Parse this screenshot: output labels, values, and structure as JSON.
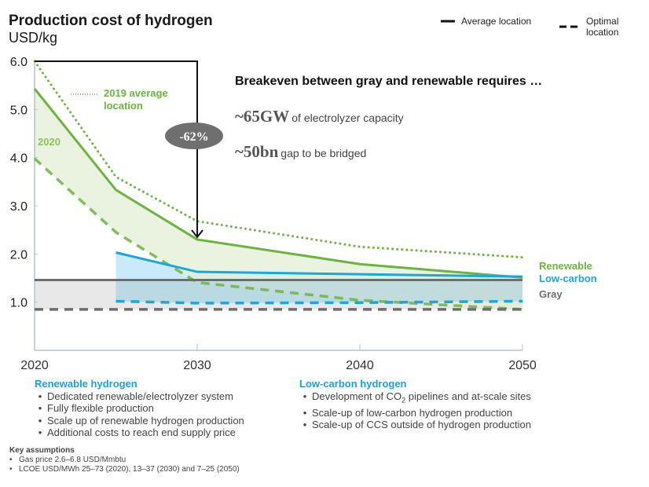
{
  "header": {
    "title": "Production cost of hydrogen",
    "unit": "USD/kg"
  },
  "legend": {
    "average": "Average location",
    "optimal": "Optimal location"
  },
  "annotation": {
    "breakeven_title": "Breakeven between gray and renewable requires …",
    "stat1_value": "~65GW",
    "stat1_text": "of electrolyzer capacity",
    "stat2_value": "~50bn",
    "stat2_text": "gap to be bridged",
    "reduction_badge": "-62%",
    "label_2019": "2019 average location",
    "label_2019_line1": "2019 average",
    "label_2019_line2": "location",
    "label_2020": "2020"
  },
  "series_labels": {
    "renewable": "Renewable",
    "low_carbon": "Low-carbon",
    "gray": "Gray"
  },
  "colors": {
    "renewable": "#6db33f",
    "renewable_fill": "#e3efd6",
    "low_carbon": "#1aa7d9",
    "low_carbon_fill": "#bfe6f7",
    "overlap_fill": "#b6d3dc",
    "gray": "#6e6e6e",
    "gray_fill": "#e8e8e8",
    "badge": "#6f6f6f"
  },
  "sections": {
    "renewable": {
      "title": "Renewable hydrogen",
      "bullets": [
        "Dedicated renewable/electrolyzer system",
        "Fully flexible production",
        "Scale up of renewable hydrogen production",
        "Additional costs to reach end supply price"
      ]
    },
    "low_carbon": {
      "title": "Low-carbon hydrogen",
      "bullet1_pre": "Development of CO",
      "bullet1_sub": "2",
      "bullet1_post": " pipelines and at-scale sites",
      "bullets": [
        "Development of CO2 pipelines and at-scale sites",
        "Scale-up of low-carbon hydrogen production",
        "Scale-up of CCS outside of hydrogen production"
      ]
    }
  },
  "assumptions": {
    "title": "Key assumptions",
    "bullets": [
      "Gas price 2.6–6.8 USD/Mmbtu",
      "LCOE USD/MWh 25–73 (2020), 13–37 (2030) and 7–25 (2050)"
    ]
  },
  "chart_data": {
    "type": "line",
    "title": "Production cost of hydrogen",
    "ylabel": "USD/kg",
    "xlabel": "",
    "xlim": [
      2020,
      2050
    ],
    "ylim": [
      0,
      6.0
    ],
    "x_ticks": [
      "2020",
      "2030",
      "2040",
      "2050"
    ],
    "y_ticks": [
      "1.0",
      "2.0",
      "3.0",
      "4.0",
      "5.0",
      "6.0"
    ],
    "grid": false,
    "legend_position": "top-right",
    "series": [
      {
        "name": "Renewable 2019 average location",
        "style": "dotted",
        "color": "#6db33f",
        "x": [
          2020,
          2025,
          2030,
          2040,
          2050
        ],
        "values": [
          6.0,
          3.6,
          2.68,
          2.15,
          1.93
        ]
      },
      {
        "name": "Renewable average location",
        "style": "solid",
        "color": "#6db33f",
        "x": [
          2020,
          2025,
          2030,
          2040,
          2050
        ],
        "values": [
          5.43,
          3.33,
          2.3,
          1.79,
          1.51
        ]
      },
      {
        "name": "Renewable optimal location",
        "style": "dashed",
        "color": "#6db33f",
        "x": [
          2020,
          2025,
          2030,
          2040,
          2050
        ],
        "values": [
          3.98,
          2.45,
          1.41,
          1.04,
          0.85
        ]
      },
      {
        "name": "Low-carbon average location",
        "style": "solid",
        "color": "#1aa7d9",
        "x": [
          2025,
          2030,
          2040,
          2050
        ],
        "values": [
          2.03,
          1.63,
          1.58,
          1.53
        ]
      },
      {
        "name": "Low-carbon optimal location",
        "style": "dashed",
        "color": "#1aa7d9",
        "x": [
          2025,
          2030,
          2040,
          2050
        ],
        "values": [
          1.02,
          0.98,
          0.99,
          1.02
        ]
      },
      {
        "name": "Gray average location",
        "style": "solid",
        "color": "#6e6e6e",
        "x": [
          2020,
          2050
        ],
        "values": [
          1.46,
          1.46
        ]
      },
      {
        "name": "Gray optimal location",
        "style": "dashed",
        "color": "#6e6e6e",
        "x": [
          2020,
          2050
        ],
        "values": [
          0.85,
          0.85
        ]
      }
    ],
    "annotations": [
      {
        "text": "-62%",
        "type": "arrow",
        "from": {
          "x": 2020,
          "y": 6.0
        },
        "to": {
          "x": 2030,
          "y": 2.3
        }
      },
      {
        "text": "2019 average location"
      },
      {
        "text": "2020"
      }
    ]
  }
}
